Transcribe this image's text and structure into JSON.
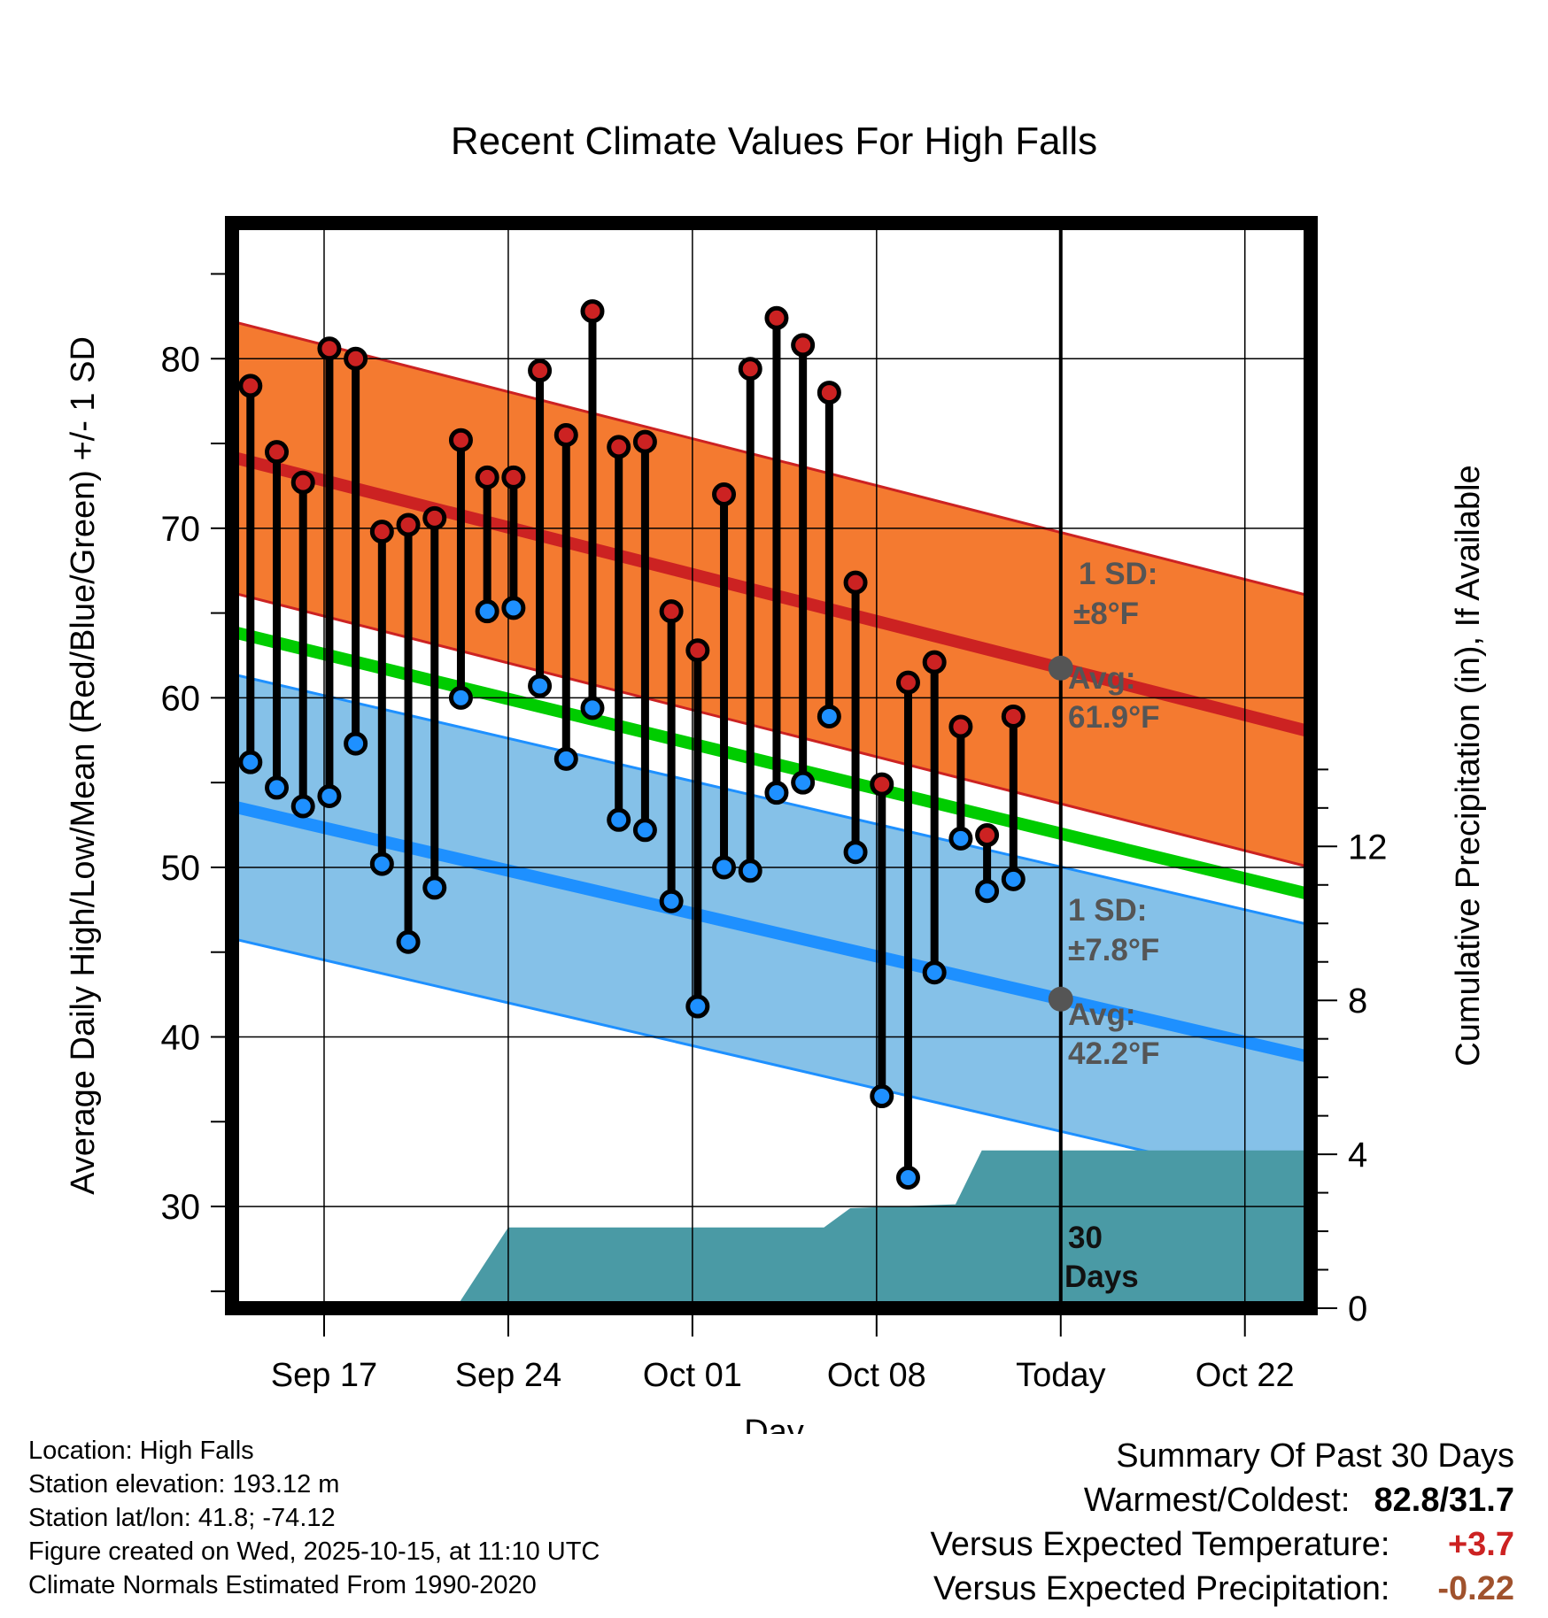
{
  "chart_data": {
    "type": "line",
    "title": "Recent Climate Values For High Falls",
    "xlabel": "Day",
    "ylabel": "Average Daily High/Low/Mean (Red/Blue/Green) +/- 1 SD",
    "ylabel_right": "Cumulative Precipitation (in), If Available",
    "x_tick_labels": [
      "Sep 17",
      "Sep 24",
      "Oct 01",
      "Oct 08",
      "Today",
      "Oct 22"
    ],
    "x_tick_days": [
      3.5,
      10.5,
      17.5,
      24.5,
      31.5,
      38.5
    ],
    "xlim": [
      0,
      41
    ],
    "ylim": [
      24,
      88
    ],
    "y_ticks": [
      30,
      40,
      50,
      60,
      70,
      80
    ],
    "y2lim": [
      0,
      28.2
    ],
    "y2_ticks": [
      0,
      4,
      8,
      12
    ],
    "today_day": 31.5,
    "normals": {
      "high_avg": [
        74.2,
        58.0
      ],
      "high_sd": 8,
      "low_avg": [
        53.6,
        38.8
      ],
      "low_sd": 7.8,
      "mean_avg": [
        63.9,
        48.4
      ]
    },
    "series": [
      {
        "name": "Daily High",
        "color": "#cc2222",
        "x": [
          0.7,
          1.7,
          2.7,
          3.7,
          4.7,
          5.7,
          6.7,
          7.7,
          8.7,
          9.7,
          10.7,
          11.7,
          12.7,
          13.7,
          14.7,
          15.7,
          16.7,
          17.7,
          18.7,
          19.7,
          20.7,
          21.7,
          22.7,
          23.7,
          24.7,
          25.7,
          26.7,
          27.7,
          28.7,
          29.7
        ],
        "values": [
          78.4,
          74.5,
          72.7,
          80.6,
          80.0,
          69.8,
          70.2,
          70.6,
          75.2,
          73.0,
          73.0,
          79.3,
          75.5,
          82.8,
          74.8,
          75.1,
          65.1,
          62.8,
          72.0,
          79.4,
          82.4,
          80.8,
          78.0,
          66.8,
          54.9,
          60.9,
          62.1,
          58.3,
          51.9,
          58.9
        ]
      },
      {
        "name": "Daily Low",
        "color": "#1e90ff",
        "x": [
          0.7,
          1.7,
          2.7,
          3.7,
          4.7,
          5.7,
          6.7,
          7.7,
          8.7,
          9.7,
          10.7,
          11.7,
          12.7,
          13.7,
          14.7,
          15.7,
          16.7,
          17.7,
          18.7,
          19.7,
          20.7,
          21.7,
          22.7,
          23.7,
          24.7,
          25.7,
          26.7,
          27.7,
          28.7,
          29.7
        ],
        "values": [
          56.2,
          54.7,
          53.6,
          54.2,
          57.3,
          50.2,
          45.6,
          48.8,
          60.0,
          65.1,
          65.3,
          60.7,
          56.4,
          59.4,
          52.8,
          52.2,
          48.0,
          41.8,
          50.0,
          49.8,
          54.4,
          55.0,
          58.9,
          50.9,
          36.5,
          31.7,
          43.8,
          51.7,
          48.6,
          49.3
        ]
      }
    ],
    "precipitation": {
      "color": "#4a9aa5",
      "x": [
        8.5,
        10.5,
        22.5,
        23.5,
        27.5,
        28.5,
        41
      ],
      "values": [
        0,
        2.1,
        2.1,
        2.6,
        2.7,
        4.1,
        4.1
      ]
    },
    "annotations": {
      "high_sd_label": "1 SD:",
      "high_sd_value": "±8°F",
      "high_avg_label": "Avg:",
      "high_avg_value": "61.9°F",
      "low_sd_label": "1 SD:",
      "low_sd_value": "±7.8°F",
      "low_avg_label": "Avg:",
      "low_avg_value": "42.2°F",
      "days_line1": "30",
      "days_line2": "Days"
    }
  },
  "info": {
    "location": "Location: High Falls",
    "elevation": "Station elevation: 193.12 m",
    "latlon": "Station lat/lon: 41.8; -74.12",
    "created": "Figure created on Wed, 2025-10-15, at 11:10 UTC",
    "normals": "Climate Normals Estimated From 1990-2020"
  },
  "summary": {
    "title": "Summary Of Past 30 Days",
    "warmest_coldest_label": "Warmest/Coldest:",
    "warmest_coldest_value": "82.8/31.7",
    "temp_label": "Versus Expected Temperature:",
    "temp_value": "+3.7",
    "temp_color": "#cc2222",
    "precip_label": "Versus Expected Precipitation:",
    "precip_value": "-0.22",
    "precip_color": "#a0522d"
  }
}
